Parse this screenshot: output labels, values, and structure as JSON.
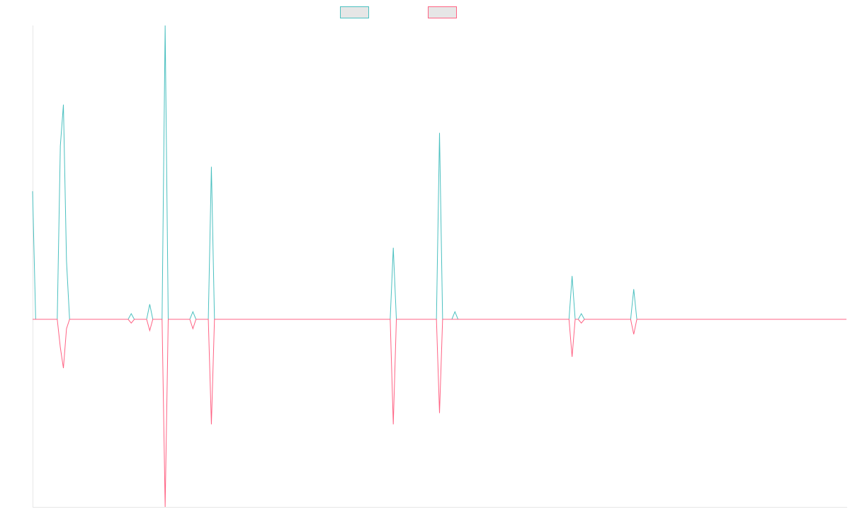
{
  "colors": {
    "teal": "#4bc0c0",
    "pink": "#ff6384",
    "swatch_fill": "#e6e6e6",
    "axis": "#e6e6e6"
  },
  "chart_data": {
    "type": "line",
    "title": "",
    "xlabel": "",
    "ylabel": "",
    "grid": false,
    "legend": "top",
    "ylim": [
      -1,
      1.56
    ],
    "series": [
      {
        "color": "#4bc0c0",
        "points": [
          [
            0,
            0.68
          ],
          [
            1,
            0
          ],
          [
            8,
            0
          ],
          [
            9,
            0.92
          ],
          [
            10,
            1.14
          ],
          [
            11,
            0.31
          ],
          [
            12,
            0
          ],
          [
            31,
            0
          ],
          [
            32,
            0.03
          ],
          [
            33,
            0
          ],
          [
            37,
            0
          ],
          [
            38,
            0.08
          ],
          [
            39,
            0
          ],
          [
            42,
            0
          ],
          [
            43,
            1.56
          ],
          [
            44,
            0
          ],
          [
            51,
            0
          ],
          [
            52,
            0.04
          ],
          [
            53,
            0
          ],
          [
            57,
            0
          ],
          [
            58,
            0.81
          ],
          [
            59,
            0
          ],
          [
            116,
            0
          ],
          [
            117,
            0.38
          ],
          [
            118,
            0
          ],
          [
            131,
            0
          ],
          [
            132,
            0.99
          ],
          [
            133,
            0
          ],
          [
            136,
            0
          ],
          [
            137,
            0.04
          ],
          [
            138,
            0
          ],
          [
            174,
            0
          ],
          [
            175,
            0.23
          ],
          [
            176,
            0
          ],
          [
            177,
            0
          ],
          [
            178,
            0.03
          ],
          [
            179,
            0
          ],
          [
            194,
            0
          ],
          [
            195,
            0.16
          ],
          [
            196,
            0
          ],
          [
            264,
            0
          ]
        ]
      },
      {
        "color": "#ff6384",
        "points": [
          [
            0,
            0
          ],
          [
            8,
            0
          ],
          [
            9,
            -0.15
          ],
          [
            10,
            -0.26
          ],
          [
            11,
            -0.05
          ],
          [
            12,
            0
          ],
          [
            31,
            0
          ],
          [
            32,
            -0.02
          ],
          [
            33,
            0
          ],
          [
            37,
            0
          ],
          [
            38,
            -0.06
          ],
          [
            39,
            0
          ],
          [
            42,
            0
          ],
          [
            43,
            -1
          ],
          [
            44,
            0
          ],
          [
            51,
            0
          ],
          [
            52,
            -0.05
          ],
          [
            53,
            0
          ],
          [
            57,
            0
          ],
          [
            58,
            -0.56
          ],
          [
            59,
            0
          ],
          [
            116,
            0
          ],
          [
            117,
            -0.56
          ],
          [
            118,
            0
          ],
          [
            131,
            0
          ],
          [
            132,
            -0.5
          ],
          [
            133,
            0
          ],
          [
            174,
            0
          ],
          [
            175,
            -0.2
          ],
          [
            176,
            0
          ],
          [
            177,
            0
          ],
          [
            178,
            -0.02
          ],
          [
            179,
            0
          ],
          [
            194,
            0
          ],
          [
            195,
            -0.08
          ],
          [
            196,
            0
          ],
          [
            264,
            0
          ]
        ]
      }
    ]
  }
}
